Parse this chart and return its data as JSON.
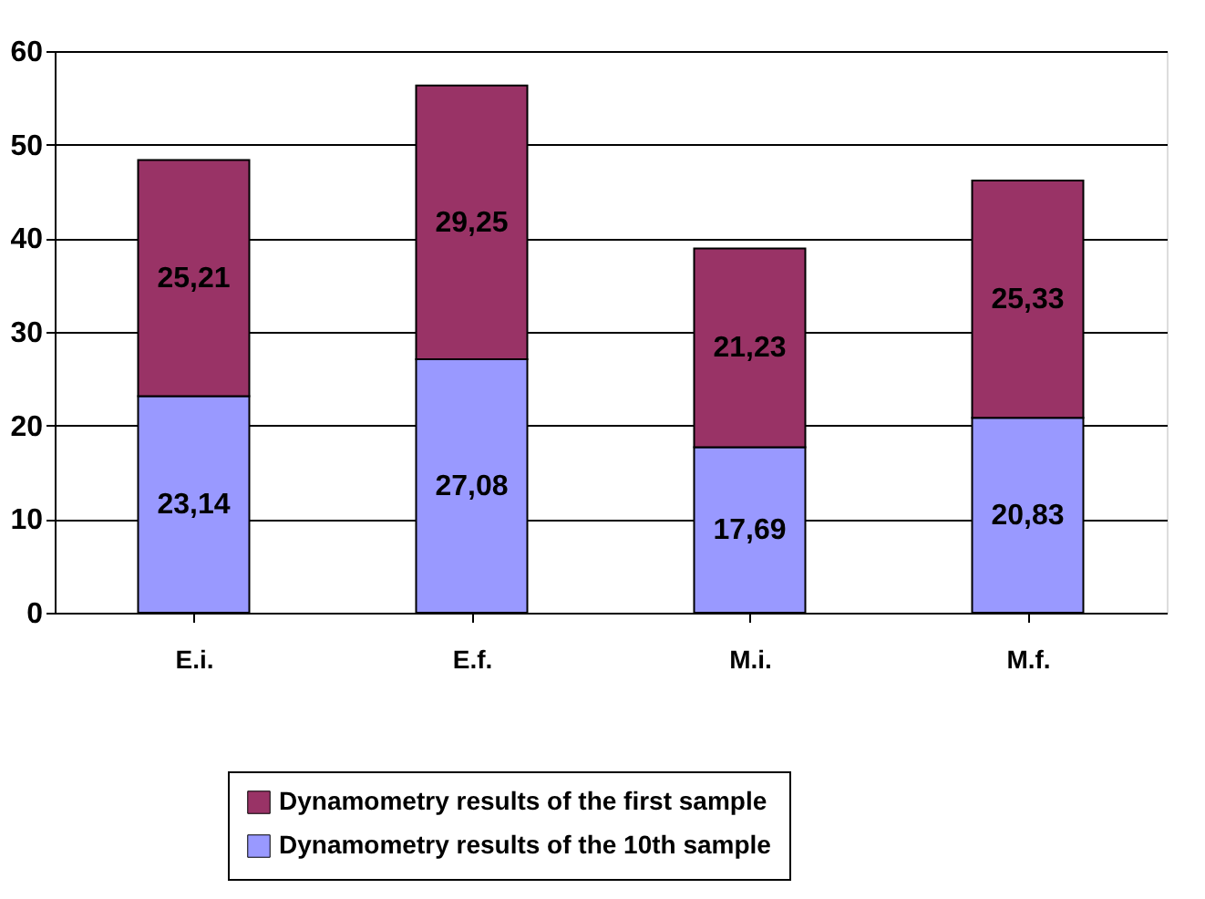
{
  "chart_data": {
    "type": "bar",
    "stacked": true,
    "categories": [
      "E.i.",
      "E.f.",
      "M.i.",
      "M.f."
    ],
    "series": [
      {
        "name": "Dynamometry results of the 10th sample",
        "color": "#9999ff",
        "values": [
          23.14,
          27.08,
          17.69,
          20.83
        ],
        "value_labels": [
          "23,14",
          "27,08",
          "17,69",
          "20,83"
        ]
      },
      {
        "name": "Dynamometry results of the first sample",
        "color": "#993366",
        "values": [
          25.21,
          29.25,
          21.23,
          25.33
        ],
        "value_labels": [
          "25,21",
          "29,25",
          "21,23",
          "25,33"
        ]
      }
    ],
    "ylim": [
      0,
      60
    ],
    "yticks": [
      0,
      10,
      20,
      30,
      40,
      50,
      60
    ],
    "grid": "y",
    "legend": "bottom"
  }
}
